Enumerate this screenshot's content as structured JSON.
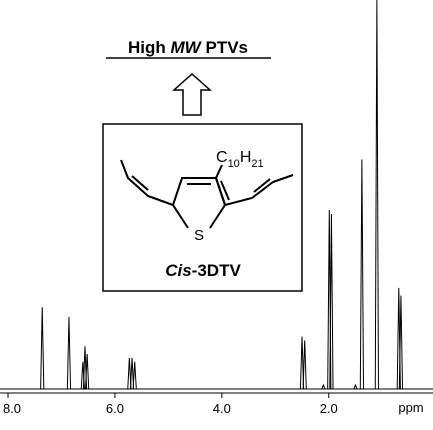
{
  "chart_data": {
    "type": "spectrum",
    "title_parts": [
      "High",
      "MW",
      "PTVs"
    ],
    "inset": {
      "substituent": "C",
      "sub1": "10",
      "mid": "H",
      "sub2": "21",
      "heteroatom": "S",
      "name_prefix": "Cis",
      "name_suffix": "-3DTV"
    },
    "x_label": "ppm",
    "xlim": [
      8.15,
      0.05
    ],
    "ylim": [
      0,
      100
    ],
    "xticks": [
      {
        "value": 8,
        "label": "8.0"
      },
      {
        "value": 6,
        "label": "6.0"
      },
      {
        "value": 4,
        "label": "4.0"
      },
      {
        "value": 2,
        "label": "2.0"
      }
    ],
    "color": "#000000",
    "peaks": {
      "x": [
        7.36,
        6.86,
        6.6,
        6.56,
        6.52,
        5.73,
        5.68,
        5.63,
        2.5,
        2.45,
        2.1,
        1.99,
        1.95,
        1.5,
        1.38,
        1.1,
        0.69,
        0.65
      ],
      "heights": [
        21,
        18.5,
        7,
        11,
        9,
        8,
        8,
        7,
        13.5,
        12.5,
        1,
        46,
        45,
        1,
        59,
        100,
        26,
        24
      ]
    }
  }
}
